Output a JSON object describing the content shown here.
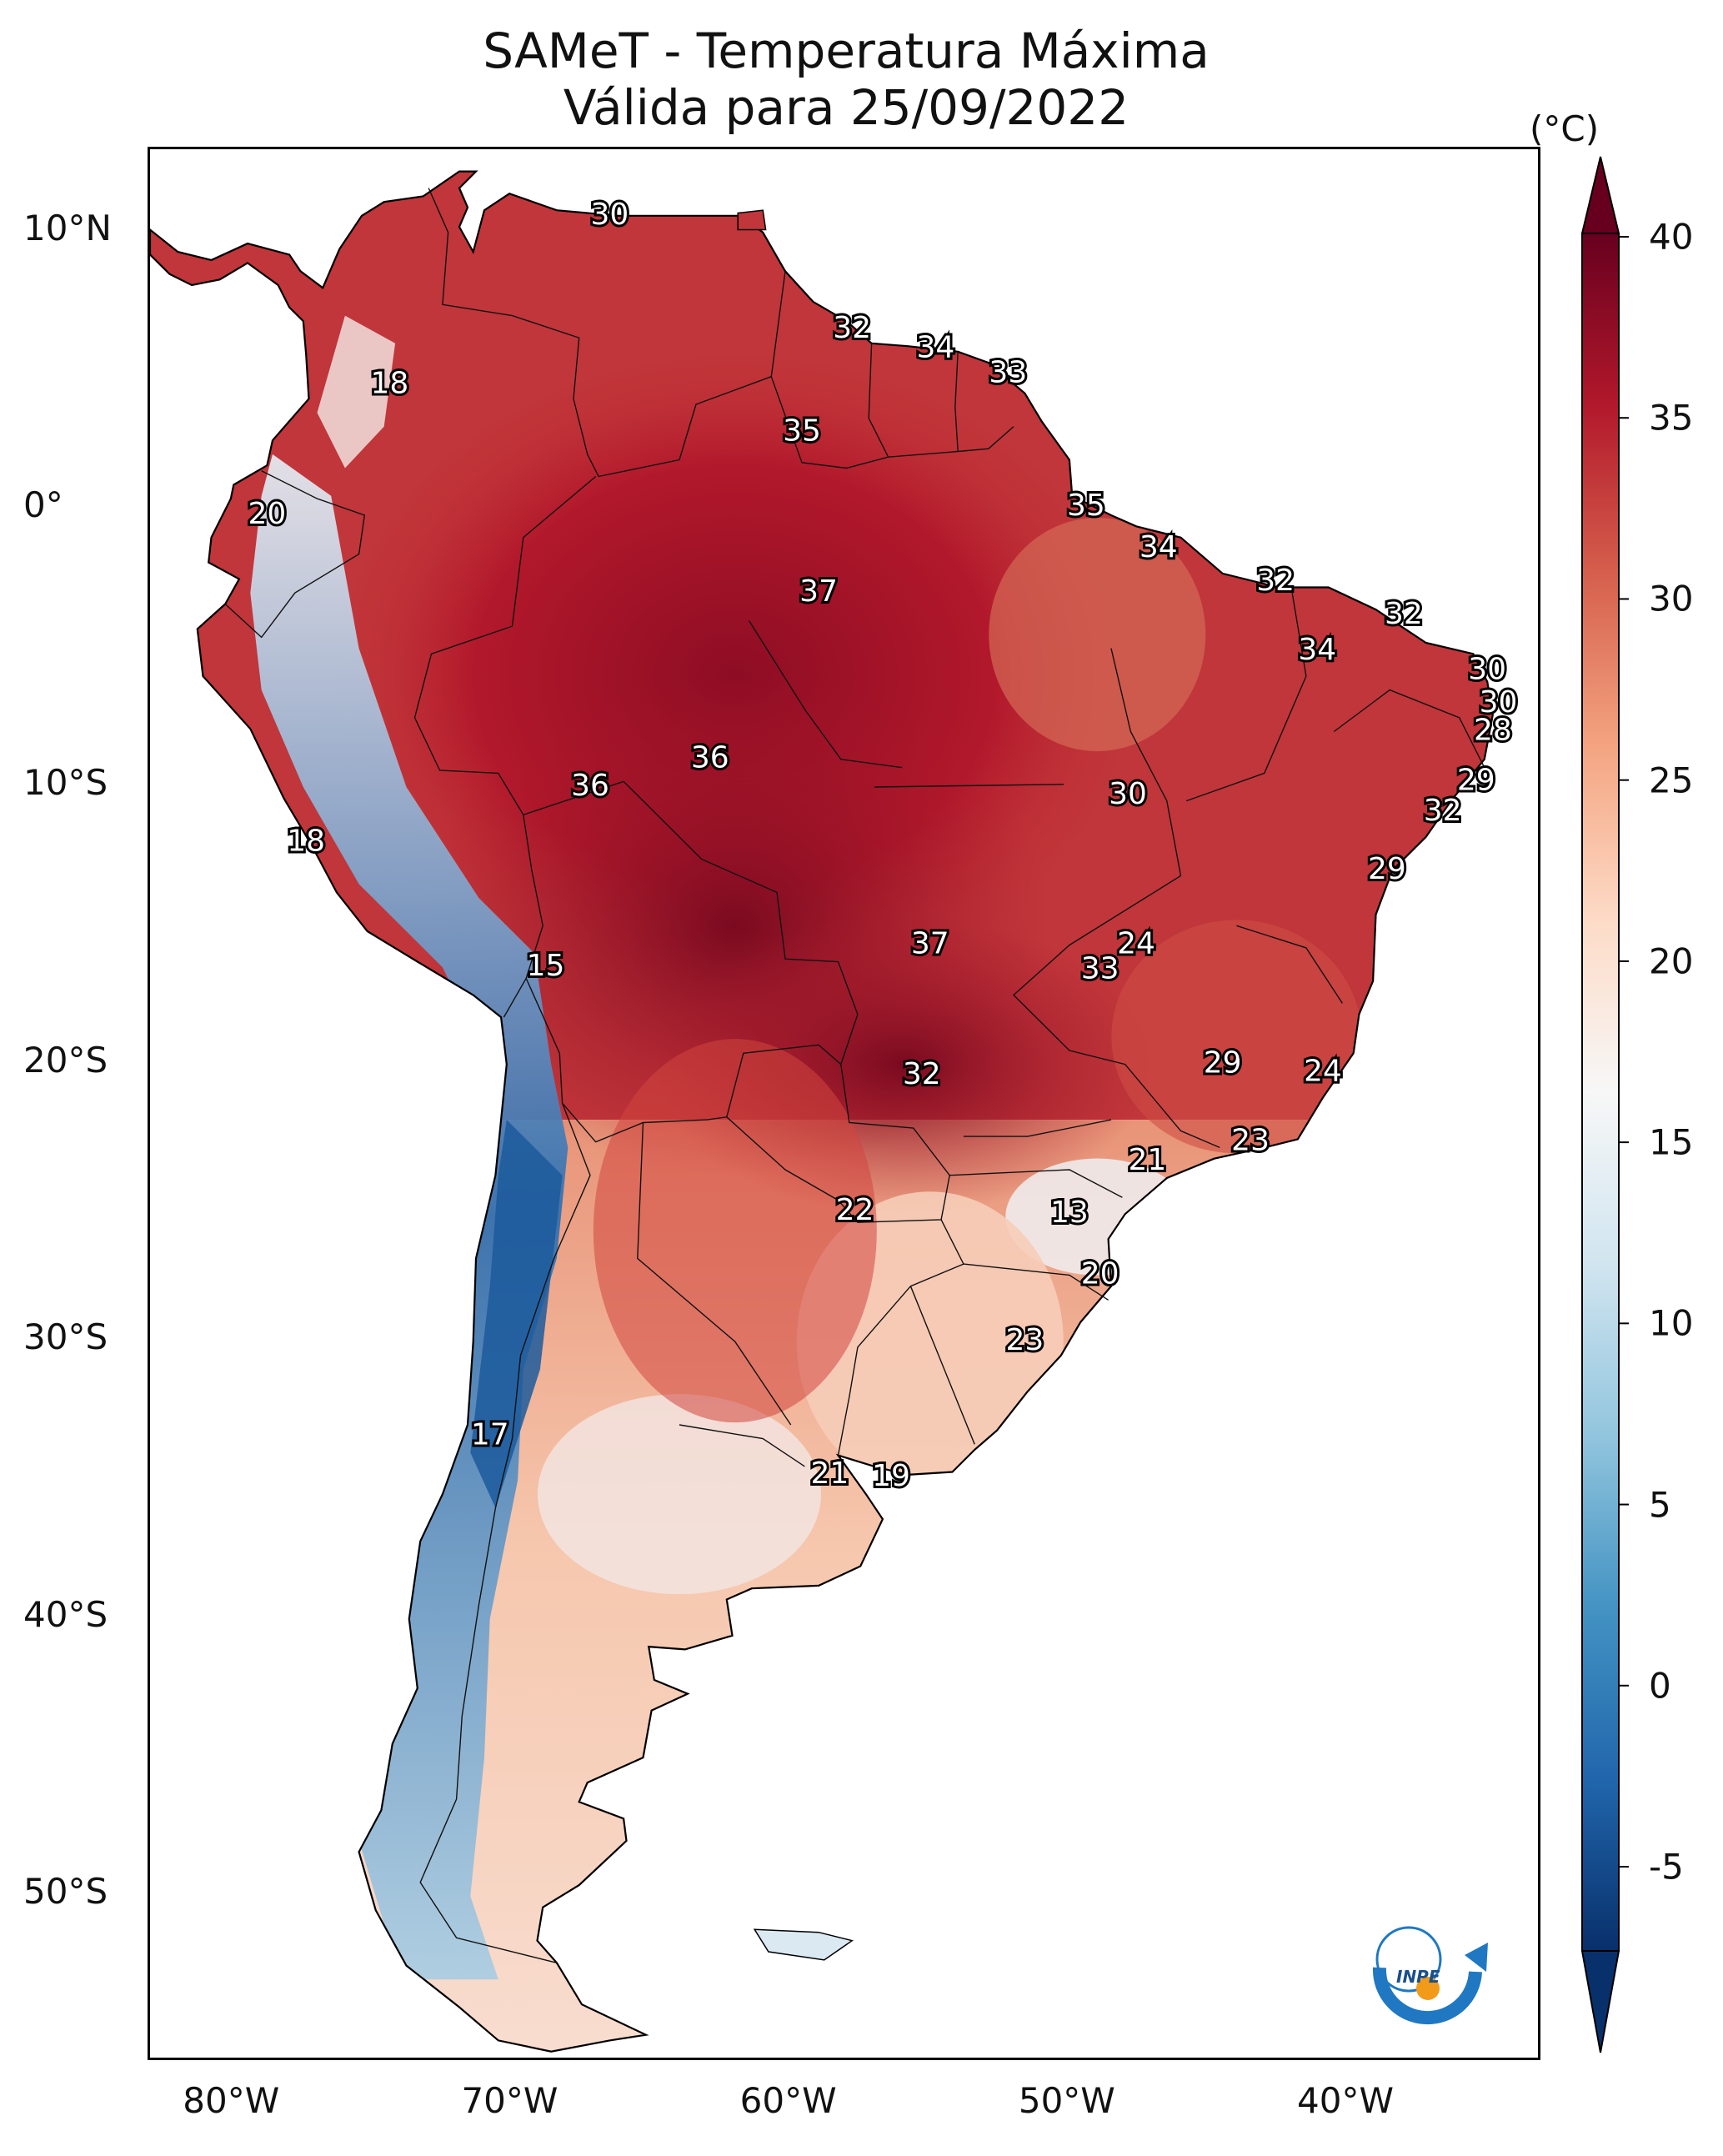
{
  "title": {
    "line1": "SAMeT - Temperatura Máxima",
    "line2": "Válida para 25/09/2022"
  },
  "axes": {
    "lat_ticks": [
      "10°N",
      "0°",
      "10°S",
      "20°S",
      "30°S",
      "40°S",
      "50°S"
    ],
    "lon_ticks": [
      "80°W",
      "70°W",
      "60°W",
      "50°W",
      "40°W"
    ]
  },
  "colorbar": {
    "unit": "(°C)",
    "min": -5,
    "max": 40,
    "ticks": [
      "40",
      "35",
      "30",
      "25",
      "20",
      "15",
      "10",
      "5",
      "0",
      "-5"
    ],
    "colors": [
      "#08306b",
      "#2166ac",
      "#4393c3",
      "#92c5de",
      "#d1e5f0",
      "#f7f7f7",
      "#fddbc7",
      "#f4a582",
      "#d6604d",
      "#b2182b",
      "#67001f"
    ]
  },
  "contour_labels": [
    {
      "text": "30",
      "lon": -66.5,
      "lat": 10.6
    },
    {
      "text": "32",
      "lon": -57.8,
      "lat": 6.5
    },
    {
      "text": "34",
      "lon": -54.8,
      "lat": 5.8
    },
    {
      "text": "33",
      "lon": -52.2,
      "lat": 4.9
    },
    {
      "text": "18",
      "lon": -74.4,
      "lat": 4.5
    },
    {
      "text": "35",
      "lon": -59.6,
      "lat": 2.8
    },
    {
      "text": "35",
      "lon": -49.4,
      "lat": 0.1
    },
    {
      "text": "20",
      "lon": -78.8,
      "lat": -0.2
    },
    {
      "text": "34",
      "lon": -46.8,
      "lat": -1.4
    },
    {
      "text": "32",
      "lon": -42.6,
      "lat": -2.6
    },
    {
      "text": "37",
      "lon": -59.0,
      "lat": -3.0
    },
    {
      "text": "32",
      "lon": -38.0,
      "lat": -3.8
    },
    {
      "text": "34",
      "lon": -41.1,
      "lat": -5.1
    },
    {
      "text": "30",
      "lon": -35.0,
      "lat": -5.8
    },
    {
      "text": "30",
      "lon": -34.6,
      "lat": -7.0
    },
    {
      "text": "28",
      "lon": -34.8,
      "lat": -8.0
    },
    {
      "text": "36",
      "lon": -62.9,
      "lat": -9.0
    },
    {
      "text": "36",
      "lon": -67.2,
      "lat": -10.0
    },
    {
      "text": "30",
      "lon": -47.9,
      "lat": -10.3
    },
    {
      "text": "29",
      "lon": -35.4,
      "lat": -9.8
    },
    {
      "text": "32",
      "lon": -36.6,
      "lat": -10.9
    },
    {
      "text": "18",
      "lon": -77.4,
      "lat": -12.0
    },
    {
      "text": "29",
      "lon": -38.6,
      "lat": -13.0
    },
    {
      "text": "37",
      "lon": -55.0,
      "lat": -15.7
    },
    {
      "text": "24",
      "lon": -47.6,
      "lat": -15.7
    },
    {
      "text": "33",
      "lon": -48.9,
      "lat": -16.6
    },
    {
      "text": "15",
      "lon": -68.8,
      "lat": -16.5
    },
    {
      "text": "29",
      "lon": -44.5,
      "lat": -20.0
    },
    {
      "text": "24",
      "lon": -40.9,
      "lat": -20.3
    },
    {
      "text": "32",
      "lon": -55.3,
      "lat": -20.4
    },
    {
      "text": "23",
      "lon": -43.5,
      "lat": -22.8
    },
    {
      "text": "21",
      "lon": -47.2,
      "lat": -23.5
    },
    {
      "text": "22",
      "lon": -57.7,
      "lat": -25.3
    },
    {
      "text": "13",
      "lon": -50.0,
      "lat": -25.4
    },
    {
      "text": "20",
      "lon": -48.9,
      "lat": -27.6
    },
    {
      "text": "23",
      "lon": -51.6,
      "lat": -30.0
    },
    {
      "text": "17",
      "lon": -70.8,
      "lat": -33.4
    },
    {
      "text": "21",
      "lon": -58.6,
      "lat": -34.8
    },
    {
      "text": "19",
      "lon": -56.4,
      "lat": -34.9
    }
  ],
  "logo": {
    "text": "INPE"
  }
}
